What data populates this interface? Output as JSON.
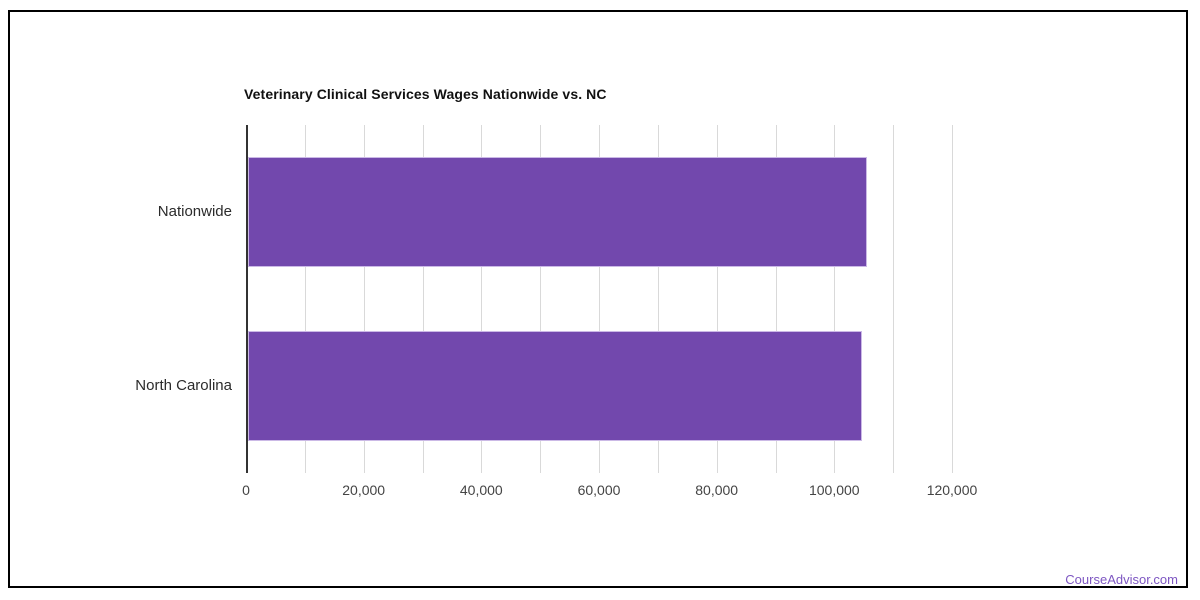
{
  "chart_data": {
    "type": "bar",
    "orientation": "horizontal",
    "title": "Veterinary Clinical Services Wages Nationwide vs. NC",
    "categories": [
      "Nationwide",
      "North Carolina"
    ],
    "values": [
      105200,
      104400
    ],
    "xlabel": "",
    "ylabel": "",
    "xlim": [
      0,
      120000
    ],
    "x_tick_interval": 20000,
    "x_tick_labels": [
      "0",
      "20,000",
      "40,000",
      "60,000",
      "80,000",
      "100,000",
      "120,000"
    ],
    "gridline_interval": 10000,
    "grid": true,
    "legend": "none",
    "colors": {
      "bar": "#7248ad",
      "bar_border": "#cbb9e6",
      "grid": "#d9d9d9",
      "axis": "#333333",
      "title_text": "#111111",
      "tick_text": "#444444",
      "category_text": "#2b2b2b",
      "frame_border": "#000000",
      "footer_link": "#7e57c2",
      "background": "#ffffff"
    }
  },
  "footer": {
    "brand": "CourseAdvisor.com"
  }
}
